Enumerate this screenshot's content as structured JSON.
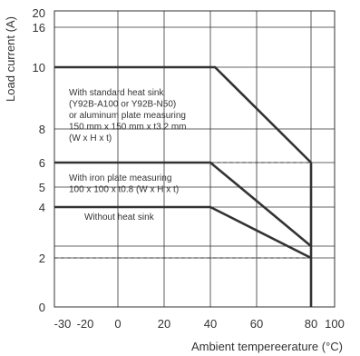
{
  "chart_data": {
    "type": "line",
    "xlabel": "Ambient tempereerature (°C)",
    "ylabel": "Load current (A)",
    "x_ticks": [
      {
        "label": "-30",
        "value": -30
      },
      {
        "label": "-20",
        "value": -20
      },
      {
        "label": "0",
        "value": 0
      },
      {
        "label": "20",
        "value": 20
      },
      {
        "label": "40",
        "value": 40
      },
      {
        "label": "60",
        "value": 60
      },
      {
        "label": "80",
        "value": 80
      },
      {
        "label": "100",
        "value": 100
      }
    ],
    "y_ticks": [
      "0",
      "2",
      "4",
      "5",
      "6",
      "8",
      "10",
      "16",
      "20"
    ],
    "grid": true,
    "series": [
      {
        "points": [
          {
            "x": -40,
            "y": "10"
          },
          {
            "x": 42,
            "y": "10"
          },
          {
            "x": 80,
            "y": "6"
          }
        ],
        "annotation": [
          "With standard heat sink",
          "(Y92B-A100 or Y92B-N50)",
          "or aluminum plate measuring",
          "150 mm x 150 mm x t3.2 mm",
          "(W x H x t)"
        ]
      },
      {
        "points": [
          {
            "x": -40,
            "y": "6"
          },
          {
            "x": 40,
            "y": "6"
          },
          {
            "x": 80,
            "y": "2.4"
          }
        ],
        "annotation": [
          "With iron plate measuring",
          "100 x 100 x t0.8 (W x H x t)"
        ]
      },
      {
        "points": [
          {
            "x": -40,
            "y": "4"
          },
          {
            "x": 40,
            "y": "4"
          },
          {
            "x": 80,
            "y": "2"
          }
        ],
        "annotation": [
          "Without heat sink"
        ]
      }
    ],
    "reference_lines": [
      {
        "y": "6",
        "x_from": 40,
        "x_to": 80
      },
      {
        "y": "2",
        "x_from": -40,
        "x_to": 80
      }
    ],
    "cutoff": {
      "x": 80,
      "y_from": "0",
      "y_to": "6"
    }
  }
}
